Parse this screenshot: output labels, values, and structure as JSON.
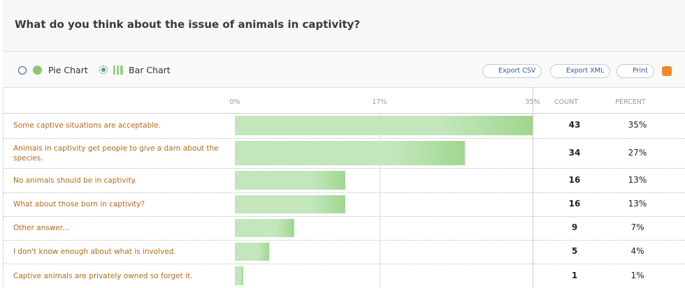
{
  "header": {
    "title": "What do you think about the issue of animals in captivity?"
  },
  "toolbar": {
    "pie": "Pie Chart",
    "bar": "Bar Chart",
    "csv": "Export CSV",
    "xml": "Export XML",
    "print": "Print"
  },
  "chart_data": {
    "type": "bar",
    "orientation": "horizontal",
    "categories": [
      "Some captive situations are acceptable.",
      "Animals in captivity get people to give a darn about the species.",
      "No animals should be in captivity.",
      "What about those born in captivity?",
      "Other answer...",
      "I don't know enough about what is involved.",
      "Captive animals are privately owned so forget it."
    ],
    "values": [
      35,
      27,
      13,
      13,
      7,
      4,
      1
    ],
    "value_labels": [
      "35%",
      "27%",
      "13%",
      "13%",
      "7%",
      "4%",
      "1%"
    ],
    "counts": [
      43,
      34,
      16,
      16,
      9,
      5,
      1
    ],
    "count_header": "COUNT",
    "percent_header": "PERCENT",
    "color": "#c3e6bc",
    "xlim": [
      0,
      35
    ],
    "xticks": [
      {
        "value": 0,
        "label": "0%"
      },
      {
        "value": 17,
        "label": "17%"
      },
      {
        "value": 35,
        "label": "35%"
      }
    ],
    "grid": true
  }
}
